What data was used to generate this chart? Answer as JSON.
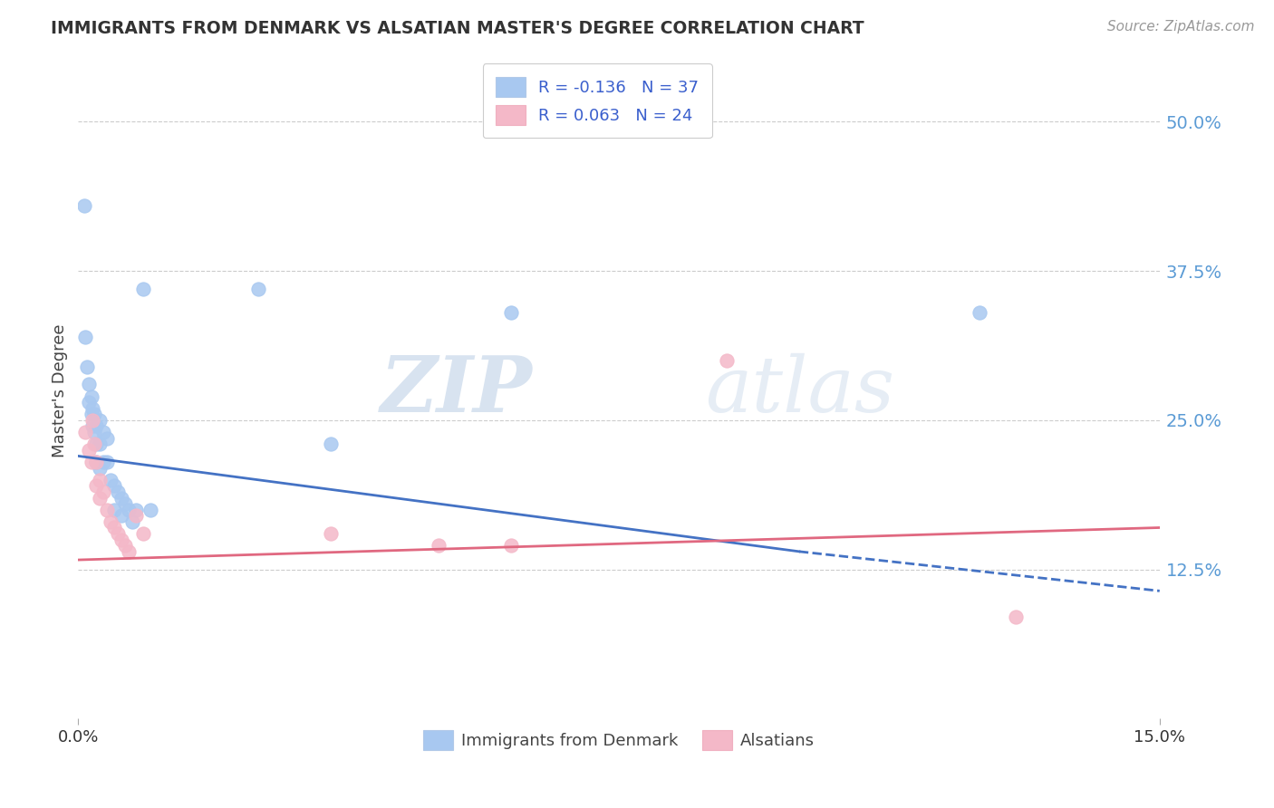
{
  "title": "IMMIGRANTS FROM DENMARK VS ALSATIAN MASTER'S DEGREE CORRELATION CHART",
  "source": "Source: ZipAtlas.com",
  "ylabel": "Master's Degree",
  "xmin": 0.0,
  "xmax": 0.15,
  "ymin": 0.0,
  "ymax": 0.55,
  "yticks": [
    0.125,
    0.25,
    0.375,
    0.5
  ],
  "ytick_labels": [
    "12.5%",
    "25.0%",
    "37.5%",
    "50.0%"
  ],
  "blue_color": "#a8c8f0",
  "pink_color": "#f4b8c8",
  "line_blue": "#4472c4",
  "line_pink": "#e06880",
  "watermark_zip": "ZIP",
  "watermark_atlas": "atlas",
  "blue_scatter": [
    [
      0.0008,
      0.43
    ],
    [
      0.001,
      0.32
    ],
    [
      0.0012,
      0.295
    ],
    [
      0.0015,
      0.28
    ],
    [
      0.0015,
      0.265
    ],
    [
      0.0018,
      0.27
    ],
    [
      0.0018,
      0.255
    ],
    [
      0.002,
      0.26
    ],
    [
      0.002,
      0.245
    ],
    [
      0.0022,
      0.255
    ],
    [
      0.0022,
      0.24
    ],
    [
      0.0025,
      0.245
    ],
    [
      0.0025,
      0.23
    ],
    [
      0.0025,
      0.215
    ],
    [
      0.003,
      0.25
    ],
    [
      0.003,
      0.23
    ],
    [
      0.003,
      0.21
    ],
    [
      0.0035,
      0.24
    ],
    [
      0.0035,
      0.215
    ],
    [
      0.004,
      0.235
    ],
    [
      0.004,
      0.215
    ],
    [
      0.0045,
      0.2
    ],
    [
      0.005,
      0.195
    ],
    [
      0.005,
      0.175
    ],
    [
      0.0055,
      0.19
    ],
    [
      0.006,
      0.185
    ],
    [
      0.006,
      0.17
    ],
    [
      0.0065,
      0.18
    ],
    [
      0.007,
      0.175
    ],
    [
      0.0075,
      0.165
    ],
    [
      0.008,
      0.175
    ],
    [
      0.009,
      0.36
    ],
    [
      0.01,
      0.175
    ],
    [
      0.025,
      0.36
    ],
    [
      0.035,
      0.23
    ],
    [
      0.06,
      0.34
    ],
    [
      0.125,
      0.34
    ]
  ],
  "pink_scatter": [
    [
      0.001,
      0.24
    ],
    [
      0.0015,
      0.225
    ],
    [
      0.0018,
      0.215
    ],
    [
      0.002,
      0.25
    ],
    [
      0.0022,
      0.23
    ],
    [
      0.0025,
      0.215
    ],
    [
      0.0025,
      0.195
    ],
    [
      0.003,
      0.2
    ],
    [
      0.003,
      0.185
    ],
    [
      0.0035,
      0.19
    ],
    [
      0.004,
      0.175
    ],
    [
      0.0045,
      0.165
    ],
    [
      0.005,
      0.16
    ],
    [
      0.0055,
      0.155
    ],
    [
      0.006,
      0.15
    ],
    [
      0.0065,
      0.145
    ],
    [
      0.007,
      0.14
    ],
    [
      0.008,
      0.17
    ],
    [
      0.009,
      0.155
    ],
    [
      0.035,
      0.155
    ],
    [
      0.05,
      0.145
    ],
    [
      0.06,
      0.145
    ],
    [
      0.09,
      0.3
    ],
    [
      0.13,
      0.085
    ]
  ],
  "blue_line": [
    [
      0.0,
      0.22
    ],
    [
      0.1,
      0.14
    ]
  ],
  "blue_line_dash": [
    [
      0.1,
      0.14
    ],
    [
      0.15,
      0.107
    ]
  ],
  "pink_line": [
    [
      0.0,
      0.133
    ],
    [
      0.15,
      0.16
    ]
  ]
}
